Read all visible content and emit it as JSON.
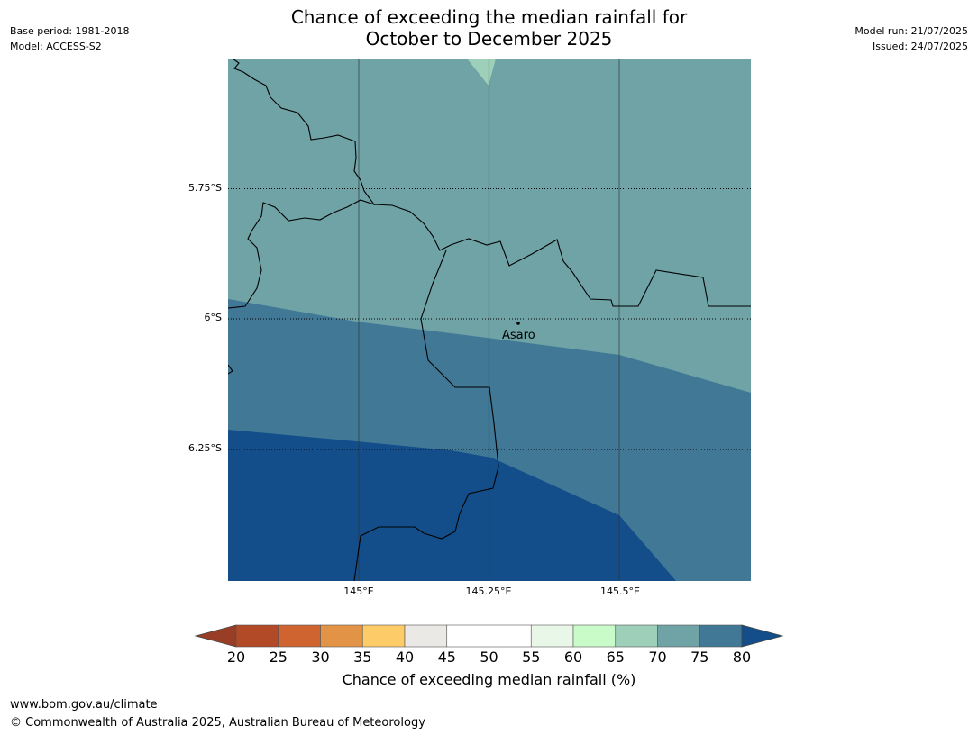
{
  "title_line1": "Chance of exceeding the median rainfall for",
  "title_line2": "October to December 2025",
  "meta_left": [
    "Base period: 1981-2018",
    "Model: ACCESS-S2"
  ],
  "meta_right": [
    "Model run: 21/07/2025",
    "Issued: 24/07/2025"
  ],
  "lat_labels": [
    "5.75°S",
    "6°S",
    "6.25°S"
  ],
  "lon_labels": [
    "145°E",
    "145.25°E",
    "145.5°E"
  ],
  "place_label": "Asaro",
  "colorbar": {
    "ticks": [
      "20",
      "25",
      "30",
      "35",
      "40",
      "45",
      "50",
      "55",
      "60",
      "65",
      "70",
      "75",
      "80"
    ],
    "label": "Chance of exceeding median rainfall (%)",
    "colors": [
      "#b24a27",
      "#cf6431",
      "#e39345",
      "#fdcb67",
      "#ebe9e5",
      "#ffffff",
      "#ffffff",
      "#e9f7e8",
      "#c9fbc9",
      "#9ecfb9",
      "#6fa3a6",
      "#407896"
    ],
    "under_color": "#983d26",
    "over_color": "#134e8a"
  },
  "zone_colors": {
    "light_green": "#9ecfb9",
    "teal": "#6fa3a6",
    "mid_blue": "#407896",
    "dark_blue": "#134e8a"
  },
  "footer": [
    "www.bom.gov.au/climate",
    "© Commonwealth of Australia 2025, Australian Bureau of Meteorology"
  ]
}
